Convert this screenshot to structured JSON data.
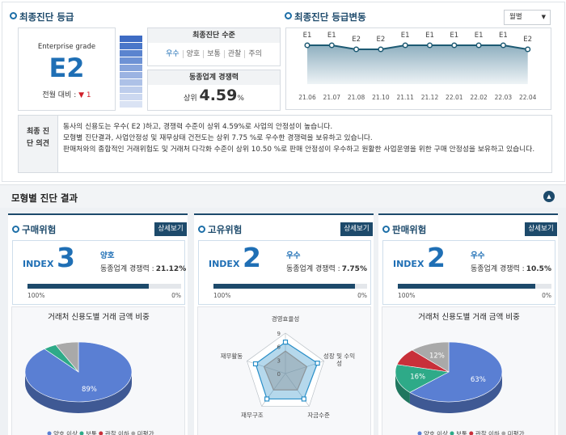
{
  "header": {
    "title": "최종진단 등급"
  },
  "grade": {
    "caption": "Enterprise grade",
    "value": "E2",
    "change_label": "전월 대비 :",
    "change_arrow": "▼",
    "change": 1
  },
  "level": {
    "title": "최종진단 수준",
    "options": [
      "우수",
      "양호",
      "보통",
      "관찰",
      "주의"
    ]
  },
  "peer": {
    "title": "동종업계 경쟁력",
    "prefix": "상위",
    "value": 4.59,
    "unit": "%"
  },
  "trend": {
    "title": "최종진단 등급변동",
    "period": "월별",
    "chart_data": {
      "type": "line",
      "categories": [
        "21.06",
        "21.07",
        "21.08",
        "21.10",
        "21.11",
        "21.12",
        "22.01",
        "22.02",
        "22.03",
        "22.04"
      ],
      "values": [
        "E1",
        "E1",
        "E2",
        "E2",
        "E1",
        "E1",
        "E1",
        "E1",
        "E1",
        "E2"
      ],
      "grades": [
        "E1",
        "E2"
      ],
      "color": "#1d5a73"
    }
  },
  "opinion": {
    "label": "최종 진단 의견",
    "lines": [
      "동사의 신용도는 우수( E2 )하고, 경쟁력 수준이 상위 4.59%로 사업의 안정성이 높습니다.",
      "모형별 진단결과, 사업안정성 및 재무상태 건전도는 상위 7.75 %로 우수한 경쟁력을 보유하고 있습니다.",
      "판매처와의 종합적인 거래위험도 및 거래처 다각화 수준이 상위 10.50 %로 판매 안정성이 우수하고 원활한 사업운영을 위한 구매 안정성을 보유하고 있습니다."
    ]
  },
  "section": {
    "title": "모형별 진단 결과"
  },
  "panels": [
    {
      "title": "구매위험",
      "button": "상세보기",
      "index_label": "INDEX",
      "index": 3,
      "status": "양호",
      "peer_label": "동종업계 경쟁력 :",
      "peer_value": 21.12,
      "peer_unit": "%",
      "bar": {
        "xlim": [
          100,
          0
        ],
        "xticks": [
          {
            "value": 100,
            "label": "100%"
          },
          {
            "value": 0,
            "label": "0%"
          }
        ]
      },
      "chart_data": {
        "type": "pie",
        "title": "거래처 신용도별 거래 금액 비중",
        "categories": [
          "양호 이상",
          "보통",
          "관찰 이하",
          "미평가"
        ],
        "values": [
          89,
          4,
          0,
          7
        ],
        "value_labels": [
          "89%",
          null,
          null,
          null
        ],
        "colors": [
          "#5a7fd3",
          "#2eaa88",
          "#c8303a",
          "#a9a9a9"
        ]
      }
    },
    {
      "title": "고유위험",
      "button": "상세보기",
      "index_label": "INDEX",
      "index": 2,
      "status": "우수",
      "peer_label": "동종업계 경쟁력 :",
      "peer_value": 7.75,
      "peer_unit": "%",
      "bar": {
        "xlim": [
          100,
          0
        ],
        "xticks": [
          {
            "value": 100,
            "label": "100%"
          },
          {
            "value": 0,
            "label": "0%"
          }
        ]
      },
      "chart_data": {
        "type": "radar",
        "categories": [
          "경영효율성",
          "성장 및 수익성",
          "자금수준",
          "재무구조",
          "재무활동"
        ],
        "rlim": [
          0,
          9
        ],
        "rticks": [
          0,
          3,
          6,
          9
        ],
        "series": [
          {
            "color": "#2a8fc8",
            "values": [
              7,
              7.5,
              7,
              7,
              7
            ]
          },
          {
            "color": "#8c9499",
            "values": [
              5,
              5,
              4.5,
              4.5,
              5
            ]
          }
        ]
      }
    },
    {
      "title": "판매위험",
      "button": "상세보기",
      "index_label": "INDEX",
      "index": 2,
      "status": "우수",
      "peer_label": "동종업계 경쟁력 :",
      "peer_value": 10.5,
      "peer_unit": "%",
      "bar": {
        "xlim": [
          100,
          0
        ],
        "xticks": [
          {
            "value": 100,
            "label": "100%"
          },
          {
            "value": 0,
            "label": "0%"
          }
        ]
      },
      "chart_data": {
        "type": "pie",
        "title": "거래처 신용도별 거래 금액 비중",
        "categories": [
          "양호 이상",
          "보통",
          "관찰 이하",
          "미평가"
        ],
        "values": [
          63,
          16,
          9,
          12
        ],
        "value_labels": [
          "63%",
          "16%",
          null,
          "12%"
        ],
        "colors": [
          "#5a7fd3",
          "#2eaa88",
          "#c8303a",
          "#a9a9a9"
        ]
      }
    }
  ]
}
